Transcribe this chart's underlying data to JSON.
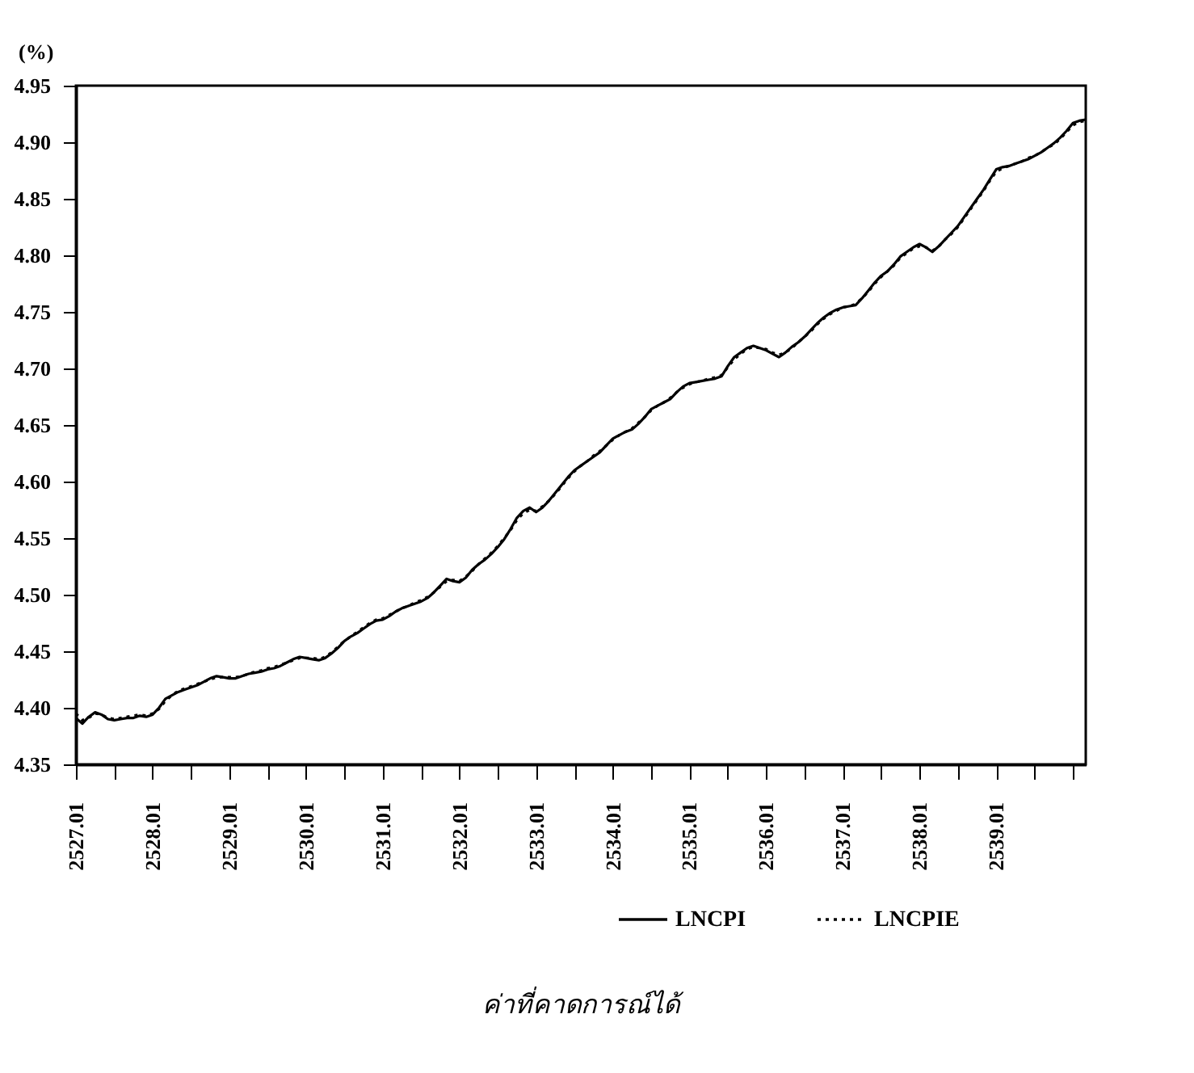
{
  "chart_data": {
    "type": "line",
    "ylabel": "(%)",
    "annotations": [
      "ค่าที่คาดการณ์ได้"
    ],
    "ylim": [
      4.35,
      4.95
    ],
    "yticks": [
      {
        "value": 4.35,
        "label": "4.35"
      },
      {
        "value": 4.4,
        "label": "4.40"
      },
      {
        "value": 4.45,
        "label": "4.45"
      },
      {
        "value": 4.5,
        "label": "4.50"
      },
      {
        "value": 4.55,
        "label": "4.55"
      },
      {
        "value": 4.6,
        "label": "4.60"
      },
      {
        "value": 4.65,
        "label": "4.65"
      },
      {
        "value": 4.7,
        "label": "4.70"
      },
      {
        "value": 4.75,
        "label": "4.75"
      },
      {
        "value": 4.8,
        "label": "4.80"
      },
      {
        "value": 4.85,
        "label": "4.85"
      },
      {
        "value": 4.9,
        "label": "4.90"
      },
      {
        "value": 4.95,
        "label": "4.95"
      }
    ],
    "categories": [
      "2527.01",
      null,
      null,
      null,
      null,
      null,
      null,
      null,
      null,
      null,
      null,
      null,
      "2528.01",
      null,
      null,
      null,
      null,
      null,
      null,
      null,
      null,
      null,
      null,
      null,
      "2529.01",
      null,
      null,
      null,
      null,
      null,
      null,
      null,
      null,
      null,
      null,
      null,
      "2530.01",
      null,
      null,
      null,
      null,
      null,
      null,
      null,
      null,
      null,
      null,
      null,
      "2531.01",
      null,
      null,
      null,
      null,
      null,
      null,
      null,
      null,
      null,
      null,
      null,
      "2532.01",
      null,
      null,
      null,
      null,
      null,
      null,
      null,
      null,
      null,
      null,
      null,
      "2533.01",
      null,
      null,
      null,
      null,
      null,
      null,
      null,
      null,
      null,
      null,
      null,
      "2534.01",
      null,
      null,
      null,
      null,
      null,
      null,
      null,
      null,
      null,
      null,
      null,
      "2535.01",
      null,
      null,
      null,
      null,
      null,
      null,
      null,
      null,
      null,
      null,
      null,
      "2536.01",
      null,
      null,
      null,
      null,
      null,
      null,
      null,
      null,
      null,
      null,
      null,
      "2537.01",
      null,
      null,
      null,
      null,
      null,
      null,
      null,
      null,
      null,
      null,
      null,
      "2538.01",
      null,
      null,
      null,
      null,
      null,
      null,
      null,
      null,
      null,
      null,
      null,
      "2539.01",
      null,
      null,
      null,
      null,
      null,
      null,
      null,
      null,
      null,
      null,
      null,
      null,
      null,
      null
    ],
    "legend": "bottom right",
    "series": [
      {
        "name": "LNCPI",
        "color": "#000000",
        "line_style": "solid",
        "values": [
          4.391,
          4.386,
          4.392,
          4.396,
          4.394,
          4.39,
          4.389,
          4.39,
          4.391,
          4.391,
          4.393,
          4.392,
          4.394,
          4.4,
          4.408,
          4.411,
          4.414,
          4.416,
          4.418,
          4.42,
          4.423,
          4.426,
          4.428,
          4.427,
          4.426,
          4.426,
          4.428,
          4.43,
          4.431,
          4.432,
          4.434,
          4.435,
          4.437,
          4.44,
          4.443,
          4.445,
          4.444,
          4.443,
          4.442,
          4.444,
          4.448,
          4.453,
          4.459,
          4.463,
          4.466,
          4.47,
          4.474,
          4.477,
          4.478,
          4.481,
          4.485,
          4.488,
          4.49,
          4.492,
          4.494,
          4.497,
          4.502,
          4.508,
          4.514,
          4.512,
          4.511,
          4.515,
          4.522,
          4.527,
          4.531,
          4.536,
          4.542,
          4.549,
          4.558,
          4.568,
          4.574,
          4.577,
          4.573,
          4.577,
          4.583,
          4.59,
          4.597,
          4.604,
          4.61,
          4.614,
          4.618,
          4.622,
          4.626,
          4.632,
          4.638,
          4.641,
          4.644,
          4.646,
          4.651,
          4.657,
          4.664,
          4.667,
          4.67,
          4.673,
          4.679,
          4.684,
          4.687,
          4.688,
          4.689,
          4.69,
          4.691,
          4.693,
          4.702,
          4.71,
          4.714,
          4.718,
          4.72,
          4.718,
          4.716,
          4.713,
          4.71,
          4.714,
          4.719,
          4.723,
          4.728,
          4.734,
          4.74,
          4.745,
          4.749,
          4.752,
          4.754,
          4.755,
          4.756,
          4.762,
          4.769,
          4.776,
          4.782,
          4.786,
          4.792,
          4.799,
          4.803,
          4.807,
          4.81,
          4.807,
          4.803,
          4.808,
          4.814,
          4.82,
          4.826,
          4.834,
          4.842,
          4.85,
          4.858,
          4.867,
          4.876,
          4.878,
          4.879,
          4.881,
          4.883,
          4.885,
          4.888,
          4.891,
          4.895,
          4.899,
          4.904,
          4.91,
          4.917,
          4.919,
          4.92
        ]
      },
      {
        "name": "LNCPIE",
        "color": "#000000",
        "line_style": "dotted",
        "values": [
          4.395,
          4.389,
          4.391,
          4.395,
          4.394,
          4.391,
          4.39,
          4.391,
          4.392,
          4.393,
          4.394,
          4.393,
          4.395,
          4.399,
          4.406,
          4.411,
          4.415,
          4.417,
          4.419,
          4.421,
          4.423,
          4.425,
          4.427,
          4.427,
          4.427,
          4.427,
          4.428,
          4.43,
          4.432,
          4.433,
          4.435,
          4.436,
          4.438,
          4.44,
          4.442,
          4.444,
          4.444,
          4.444,
          4.443,
          4.445,
          4.449,
          4.454,
          4.459,
          4.463,
          4.467,
          4.471,
          4.475,
          4.478,
          4.479,
          4.482,
          4.485,
          4.488,
          4.49,
          4.493,
          4.495,
          4.498,
          4.502,
          4.507,
          4.512,
          4.513,
          4.512,
          4.516,
          4.521,
          4.527,
          4.532,
          4.537,
          4.543,
          4.55,
          4.557,
          4.566,
          4.572,
          4.575,
          4.574,
          4.578,
          4.583,
          4.589,
          4.596,
          4.603,
          4.609,
          4.614,
          4.618,
          4.623,
          4.627,
          4.632,
          4.637,
          4.641,
          4.644,
          4.647,
          4.652,
          4.657,
          4.663,
          4.667,
          4.67,
          4.674,
          4.679,
          4.683,
          4.686,
          4.688,
          4.689,
          4.691,
          4.692,
          4.694,
          4.701,
          4.708,
          4.713,
          4.717,
          4.719,
          4.718,
          4.717,
          4.714,
          4.712,
          4.714,
          4.718,
          4.723,
          4.728,
          4.733,
          4.739,
          4.744,
          4.748,
          4.751,
          4.754,
          4.755,
          4.757,
          4.762,
          4.768,
          4.775,
          4.781,
          4.786,
          4.791,
          4.798,
          4.802,
          4.806,
          4.808,
          4.807,
          4.804,
          4.808,
          4.814,
          4.819,
          4.825,
          4.833,
          4.841,
          4.849,
          4.857,
          4.866,
          4.874,
          4.877,
          4.879,
          4.881,
          4.883,
          4.886,
          4.888,
          4.891,
          4.895,
          4.898,
          4.903,
          4.909,
          4.915,
          4.918,
          4.919
        ]
      }
    ]
  }
}
